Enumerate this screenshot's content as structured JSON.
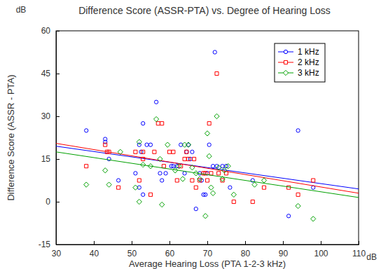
{
  "chart_data": {
    "type": "scatter",
    "title": "Difference Score (ASSR-PTA) vs. Degree of Hearing Loss",
    "x_label": "Average Hearing Loss (PTA 1-2-3 kHz)",
    "y_label": "Difference Score (ASSR - PTA)",
    "x_unit": "dB",
    "y_unit": "dB",
    "xlim": [
      30,
      110
    ],
    "xticks": [
      30,
      40,
      50,
      60,
      70,
      80,
      90,
      100,
      110
    ],
    "ylim": [
      -15,
      60
    ],
    "yticks": [
      -15,
      0,
      15,
      30,
      45,
      60
    ],
    "grid": false,
    "legend": "upper-right",
    "series": [
      {
        "name": "1 kHz",
        "color": "#0000ff",
        "marker": "circle",
        "x": [
          38,
          43,
          43,
          44,
          46.5,
          51,
          52,
          52,
          52.5,
          53,
          53,
          54,
          55,
          56.5,
          57.5,
          58,
          59,
          60.5,
          61,
          62,
          63,
          64,
          64.5,
          65,
          65.5,
          66,
          67,
          68,
          68.5,
          69,
          69.5,
          70,
          70.5,
          71.5,
          72,
          72.5,
          74,
          75,
          76,
          82,
          91.5,
          94,
          98
        ],
        "values": [
          25,
          22,
          21,
          15,
          7.5,
          10,
          20,
          5,
          17.5,
          27.5,
          2.5,
          20,
          20,
          35,
          10,
          7.5,
          10,
          12.5,
          12.5,
          12.5,
          20,
          10,
          17.5,
          20,
          15,
          17.5,
          -2.5,
          10,
          7.5,
          2.5,
          2.5,
          10,
          20,
          12.5,
          52.5,
          12.5,
          12.5,
          12.5,
          5,
          7.5,
          -5,
          25,
          5
        ],
        "trend": {
          "x": [
            30,
            110
          ],
          "values": [
            19.5,
            4.5
          ]
        }
      },
      {
        "name": "2 kHz",
        "color": "#ff0000",
        "marker": "square",
        "x": [
          38,
          43,
          43.5,
          44,
          46.5,
          51,
          52,
          53,
          53,
          55,
          56,
          57,
          58,
          58.5,
          60,
          61,
          62,
          63,
          64,
          64.5,
          65,
          66,
          66.5,
          67,
          68,
          69,
          69.5,
          70,
          70.5,
          71,
          72.5,
          73,
          74,
          75,
          77,
          82,
          85,
          91.5,
          94,
          98
        ],
        "values": [
          12.5,
          20,
          17.5,
          17.5,
          5,
          17.5,
          7.5,
          15,
          17.5,
          2.5,
          17.5,
          27.5,
          27.5,
          12.5,
          17.5,
          17.5,
          7.5,
          12.5,
          15,
          17.5,
          15,
          7.5,
          15,
          5,
          7.5,
          10,
          10,
          7.5,
          27.5,
          10,
          45,
          10,
          7.5,
          10,
          0,
          0,
          5,
          5,
          2.5,
          7.5
        ],
        "trend": {
          "x": [
            30,
            110
          ],
          "values": [
            20.5,
            3
          ]
        }
      },
      {
        "name": "3 kHz",
        "color": "#00a000",
        "marker": "diamond",
        "x": [
          38,
          43,
          44,
          47,
          51,
          52,
          52,
          53,
          55,
          56.5,
          57.5,
          58,
          59.5,
          61.5,
          62.5,
          63.5,
          64,
          65,
          66,
          67,
          68,
          69.5,
          70,
          70.5,
          71,
          71.5,
          72.5,
          73,
          74,
          74.5,
          75.5,
          77,
          82.5,
          85,
          94,
          98
        ],
        "values": [
          6,
          11,
          6,
          17.5,
          5,
          21,
          0,
          13,
          12.5,
          29,
          15,
          -1,
          20,
          11,
          12.5,
          8,
          20,
          20,
          12,
          10,
          8,
          -5,
          24,
          16,
          5,
          3,
          30,
          12,
          8,
          11,
          12.5,
          2.5,
          6,
          7.5,
          -1.5,
          -6
        ],
        "trend": {
          "x": [
            30,
            110
          ],
          "values": [
            17.5,
            1.5
          ]
        }
      }
    ]
  }
}
